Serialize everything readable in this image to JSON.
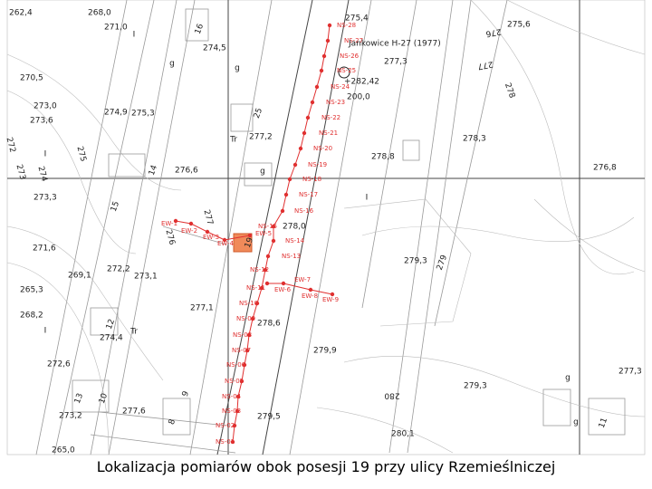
{
  "caption": "Lokalizacja pomiarów obok posesji 19 przy ulicy Rzemieślniczej",
  "benchmark": "Jankowice H-27 (1977)",
  "ns_points": [
    "NS-01",
    "NS-02",
    "NS-03",
    "NS-04",
    "NS-05",
    "NS-06",
    "NS-07",
    "NS-08",
    "NS-09",
    "NS-10",
    "NS-11",
    "NS-12",
    "NS-13",
    "NS-14",
    "NS-15",
    "NS-16",
    "NS-17",
    "NS-18",
    "NS-19",
    "NS-20",
    "NS-21",
    "NS-22",
    "NS-23",
    "NS-24",
    "NS-25",
    "NS-26",
    "NS-27",
    "NS-28"
  ],
  "ew_points": [
    "EW-1",
    "EW-2",
    "EW-3",
    "EW-4",
    "EW-5",
    "EW-6",
    "EW-7",
    "EW-8",
    "EW-9"
  ],
  "elevations": [
    "262,4",
    "268,0",
    "271,0",
    "274,5",
    "275,4",
    "275,6",
    "270,5",
    "273,0",
    "273,6",
    "274,9",
    "275,3",
    "277,3",
    "+282,42",
    "200,0",
    "277,2",
    "278,3",
    "278,8",
    "276,6",
    "276,8",
    "273,3",
    "278,0",
    "271,6",
    "279,3",
    "269,1",
    "272,2",
    "273,1",
    "265,3",
    "277,1",
    "268,2",
    "278,6",
    "274,4",
    "279,9",
    "272,6",
    "277,3",
    "279,3",
    "277,6",
    "273,2",
    "279,5",
    "280,1",
    "265,0"
  ],
  "map_labels": [
    "I",
    "g",
    "g",
    "25",
    "Tr",
    "16",
    "275",
    "272",
    "273",
    "274",
    "15",
    "14",
    "g",
    "19",
    "277",
    "276",
    "12",
    "Tr",
    "13",
    "10",
    "8",
    "9",
    "280",
    "279",
    "278",
    "277",
    "276",
    "11",
    "g",
    "g",
    "I",
    "I",
    "I"
  ]
}
